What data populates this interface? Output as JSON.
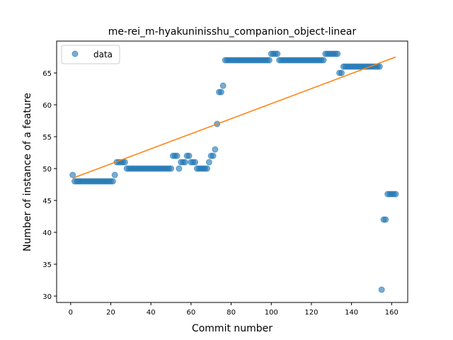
{
  "chart_data": {
    "type": "scatter",
    "title": "me-rei_m-hyakuninisshu_companion_object-linear",
    "xlabel": "Commit number",
    "ylabel": "Number of instance of a feature",
    "xlim": [
      -7,
      168
    ],
    "ylim": [
      29,
      70
    ],
    "xticks": [
      0,
      20,
      40,
      60,
      80,
      100,
      120,
      140,
      160
    ],
    "yticks": [
      30,
      35,
      40,
      45,
      50,
      55,
      60,
      65
    ],
    "legend_position": "top-left",
    "grid": false,
    "series": [
      {
        "name": "data",
        "kind": "points",
        "color": "#1f77b4",
        "points": [
          [
            1,
            49
          ],
          [
            2,
            48
          ],
          [
            3,
            48
          ],
          [
            4,
            48
          ],
          [
            5,
            48
          ],
          [
            6,
            48
          ],
          [
            7,
            48
          ],
          [
            8,
            48
          ],
          [
            9,
            48
          ],
          [
            10,
            48
          ],
          [
            11,
            48
          ],
          [
            12,
            48
          ],
          [
            13,
            48
          ],
          [
            14,
            48
          ],
          [
            15,
            48
          ],
          [
            16,
            48
          ],
          [
            17,
            48
          ],
          [
            18,
            48
          ],
          [
            19,
            48
          ],
          [
            20,
            48
          ],
          [
            21,
            48
          ],
          [
            22,
            49
          ],
          [
            23,
            51
          ],
          [
            24,
            51
          ],
          [
            25,
            51
          ],
          [
            26,
            51
          ],
          [
            27,
            51
          ],
          [
            28,
            50
          ],
          [
            29,
            50
          ],
          [
            30,
            50
          ],
          [
            31,
            50
          ],
          [
            32,
            50
          ],
          [
            33,
            50
          ],
          [
            34,
            50
          ],
          [
            35,
            50
          ],
          [
            36,
            50
          ],
          [
            37,
            50
          ],
          [
            38,
            50
          ],
          [
            39,
            50
          ],
          [
            40,
            50
          ],
          [
            41,
            50
          ],
          [
            42,
            50
          ],
          [
            43,
            50
          ],
          [
            44,
            50
          ],
          [
            45,
            50
          ],
          [
            46,
            50
          ],
          [
            47,
            50
          ],
          [
            48,
            50
          ],
          [
            49,
            50
          ],
          [
            50,
            50
          ],
          [
            51,
            52
          ],
          [
            52,
            52
          ],
          [
            53,
            52
          ],
          [
            54,
            50
          ],
          [
            55,
            51
          ],
          [
            56,
            51
          ],
          [
            57,
            51
          ],
          [
            58,
            52
          ],
          [
            59,
            52
          ],
          [
            60,
            51
          ],
          [
            61,
            51
          ],
          [
            62,
            51
          ],
          [
            63,
            50
          ],
          [
            64,
            50
          ],
          [
            65,
            50
          ],
          [
            66,
            50
          ],
          [
            67,
            50
          ],
          [
            68,
            50
          ],
          [
            69,
            51
          ],
          [
            70,
            52
          ],
          [
            71,
            52
          ],
          [
            72,
            53
          ],
          [
            73,
            57
          ],
          [
            74,
            62
          ],
          [
            75,
            62
          ],
          [
            76,
            63
          ],
          [
            77,
            67
          ],
          [
            78,
            67
          ],
          [
            79,
            67
          ],
          [
            80,
            67
          ],
          [
            81,
            67
          ],
          [
            82,
            67
          ],
          [
            83,
            67
          ],
          [
            84,
            67
          ],
          [
            85,
            67
          ],
          [
            86,
            67
          ],
          [
            87,
            67
          ],
          [
            88,
            67
          ],
          [
            89,
            67
          ],
          [
            90,
            67
          ],
          [
            91,
            67
          ],
          [
            92,
            67
          ],
          [
            93,
            67
          ],
          [
            94,
            67
          ],
          [
            95,
            67
          ],
          [
            96,
            67
          ],
          [
            97,
            67
          ],
          [
            98,
            67
          ],
          [
            99,
            67
          ],
          [
            100,
            68
          ],
          [
            101,
            68
          ],
          [
            102,
            68
          ],
          [
            103,
            68
          ],
          [
            104,
            67
          ],
          [
            105,
            67
          ],
          [
            106,
            67
          ],
          [
            107,
            67
          ],
          [
            108,
            67
          ],
          [
            109,
            67
          ],
          [
            110,
            67
          ],
          [
            111,
            67
          ],
          [
            112,
            67
          ],
          [
            113,
            67
          ],
          [
            114,
            67
          ],
          [
            115,
            67
          ],
          [
            116,
            67
          ],
          [
            117,
            67
          ],
          [
            118,
            67
          ],
          [
            119,
            67
          ],
          [
            120,
            67
          ],
          [
            121,
            67
          ],
          [
            122,
            67
          ],
          [
            123,
            67
          ],
          [
            124,
            67
          ],
          [
            125,
            67
          ],
          [
            126,
            67
          ],
          [
            127,
            68
          ],
          [
            128,
            68
          ],
          [
            129,
            68
          ],
          [
            130,
            68
          ],
          [
            131,
            68
          ],
          [
            132,
            68
          ],
          [
            133,
            68
          ],
          [
            134,
            65
          ],
          [
            135,
            65
          ],
          [
            136,
            66
          ],
          [
            137,
            66
          ],
          [
            138,
            66
          ],
          [
            139,
            66
          ],
          [
            140,
            66
          ],
          [
            141,
            66
          ],
          [
            142,
            66
          ],
          [
            143,
            66
          ],
          [
            144,
            66
          ],
          [
            145,
            66
          ],
          [
            146,
            66
          ],
          [
            147,
            66
          ],
          [
            148,
            66
          ],
          [
            149,
            66
          ],
          [
            150,
            66
          ],
          [
            151,
            66
          ],
          [
            152,
            66
          ],
          [
            153,
            66
          ],
          [
            154,
            66
          ],
          [
            155,
            31
          ],
          [
            156,
            42
          ],
          [
            157,
            42
          ],
          [
            158,
            46
          ],
          [
            159,
            46
          ],
          [
            160,
            46
          ],
          [
            161,
            46
          ],
          [
            162,
            46
          ]
        ]
      },
      {
        "kind": "line",
        "color": "#ff7f0e",
        "points": [
          [
            1,
            48.5
          ],
          [
            162,
            67.5
          ]
        ]
      }
    ]
  }
}
